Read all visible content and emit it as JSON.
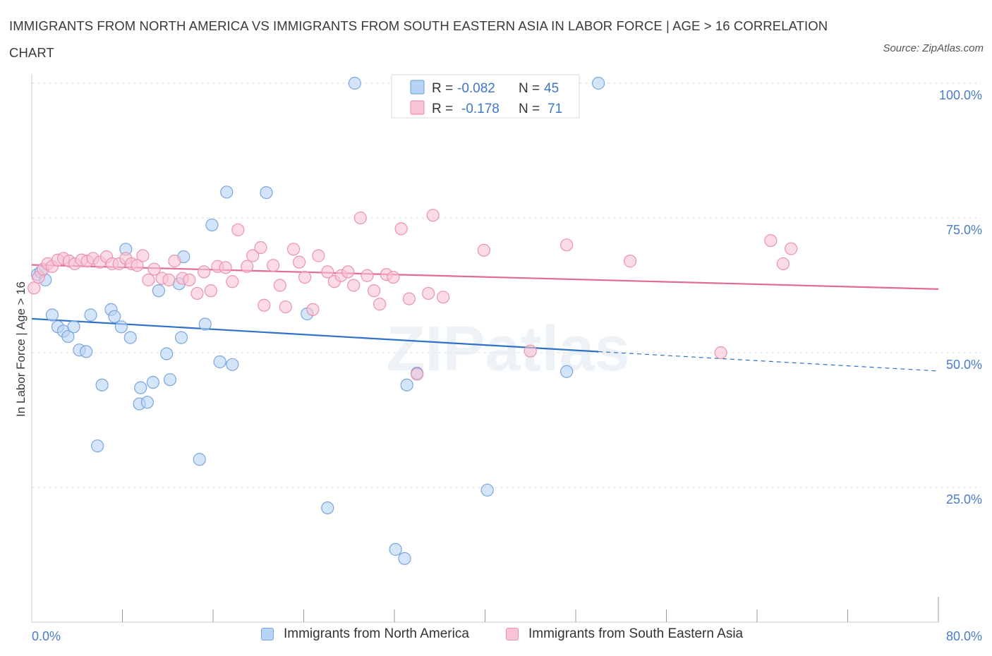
{
  "title": "IMMIGRANTS FROM NORTH AMERICA VS IMMIGRANTS FROM SOUTH EASTERN ASIA IN LABOR FORCE | AGE > 16 CORRELATION CHART",
  "source": "Source: ZipAtlas.com",
  "watermark": "ZIPatlas",
  "legend": {
    "r_label": "R =",
    "n_label": "N =",
    "rows": [
      {
        "r": "-0.082",
        "n": "45"
      },
      {
        "r": "-0.178",
        "n": "71"
      }
    ]
  },
  "colors": {
    "blue_fill": "#b7d3f5",
    "blue_stroke": "#7aa6de",
    "blue_line": "#2e72c9",
    "pink_fill": "#f8c3d3",
    "pink_stroke": "#ea93b0",
    "pink_line": "#e26a93",
    "tick_text": "#4a7cc9"
  },
  "chart_data": {
    "type": "scatter",
    "xlabel": "",
    "ylabel": "In Labor Force | Age > 16",
    "xlim": [
      0,
      80
    ],
    "ylim": [
      0,
      100
    ],
    "x_tick_labels": [
      "0.0%",
      "80.0%"
    ],
    "y_ticks": [
      25,
      50,
      75,
      100
    ],
    "y_tick_labels": [
      "25.0%",
      "50.0%",
      "75.0%",
      "100.0%"
    ],
    "grid": true,
    "legend_position": "top-center",
    "series": [
      {
        "name": "Immigrants from North America",
        "color": "#b7d3f5",
        "trend": {
          "x": [
            0,
            50
          ],
          "y": [
            56.3,
            50.2
          ],
          "dashed_to": [
            80,
            46.6
          ]
        },
        "points": [
          [
            0.5,
            64.5
          ],
          [
            0.8,
            65.0
          ],
          [
            1.2,
            63.5
          ],
          [
            1.8,
            57.0
          ],
          [
            2.3,
            54.8
          ],
          [
            2.8,
            54.0
          ],
          [
            3.2,
            53.0
          ],
          [
            3.7,
            54.8
          ],
          [
            4.2,
            50.5
          ],
          [
            4.8,
            50.2
          ],
          [
            5.2,
            57.0
          ],
          [
            6.2,
            44.0
          ],
          [
            5.8,
            32.7
          ],
          [
            7.0,
            58.0
          ],
          [
            7.3,
            56.7
          ],
          [
            7.9,
            54.8
          ],
          [
            8.7,
            52.8
          ],
          [
            8.3,
            69.2
          ],
          [
            9.6,
            43.5
          ],
          [
            9.5,
            40.5
          ],
          [
            10.2,
            40.8
          ],
          [
            10.7,
            44.5
          ],
          [
            11.2,
            61.5
          ],
          [
            11.9,
            49.8
          ],
          [
            12.2,
            45.0
          ],
          [
            13.2,
            52.8
          ],
          [
            13.0,
            62.8
          ],
          [
            13.4,
            67.8
          ],
          [
            14.8,
            30.2
          ],
          [
            15.3,
            55.3
          ],
          [
            15.9,
            73.7
          ],
          [
            16.6,
            48.3
          ],
          [
            17.7,
            47.8
          ],
          [
            17.2,
            79.8
          ],
          [
            20.7,
            79.7
          ],
          [
            24.3,
            57.2
          ],
          [
            26.1,
            21.2
          ],
          [
            28.5,
            100.0
          ],
          [
            32.1,
            13.5
          ],
          [
            32.9,
            11.8
          ],
          [
            33.1,
            44.0
          ],
          [
            34.0,
            46.2
          ],
          [
            40.2,
            24.5
          ],
          [
            47.2,
            46.5
          ],
          [
            50.0,
            100.0
          ]
        ]
      },
      {
        "name": "Immigrants from South Eastern Asia",
        "color": "#f8c3d3",
        "trend": {
          "x": [
            0,
            80
          ],
          "y": [
            66.3,
            61.8
          ]
        },
        "points": [
          [
            0.2,
            62.0
          ],
          [
            0.6,
            64.0
          ],
          [
            1.0,
            65.5
          ],
          [
            1.4,
            66.5
          ],
          [
            1.8,
            66.0
          ],
          [
            2.3,
            67.2
          ],
          [
            2.8,
            67.5
          ],
          [
            3.3,
            67.0
          ],
          [
            3.8,
            66.5
          ],
          [
            4.4,
            67.2
          ],
          [
            4.9,
            67.0
          ],
          [
            5.4,
            67.5
          ],
          [
            6.0,
            66.8
          ],
          [
            6.6,
            67.8
          ],
          [
            7.1,
            66.5
          ],
          [
            7.7,
            66.5
          ],
          [
            8.3,
            67.5
          ],
          [
            8.8,
            66.5
          ],
          [
            9.3,
            66.2
          ],
          [
            9.8,
            68.0
          ],
          [
            10.3,
            63.5
          ],
          [
            10.8,
            65.5
          ],
          [
            11.5,
            63.8
          ],
          [
            12.1,
            63.5
          ],
          [
            12.6,
            67.0
          ],
          [
            13.3,
            63.8
          ],
          [
            13.9,
            63.5
          ],
          [
            14.6,
            61.0
          ],
          [
            15.2,
            65.0
          ],
          [
            15.8,
            61.5
          ],
          [
            16.4,
            66.0
          ],
          [
            17.1,
            65.8
          ],
          [
            17.7,
            63.2
          ],
          [
            18.2,
            72.8
          ],
          [
            19.0,
            66.0
          ],
          [
            19.5,
            68.0
          ],
          [
            20.2,
            69.5
          ],
          [
            20.5,
            58.8
          ],
          [
            21.3,
            66.2
          ],
          [
            21.9,
            62.5
          ],
          [
            22.4,
            58.5
          ],
          [
            23.1,
            69.2
          ],
          [
            23.6,
            66.8
          ],
          [
            24.1,
            64.0
          ],
          [
            24.8,
            58.0
          ],
          [
            25.3,
            68.0
          ],
          [
            26.1,
            65.0
          ],
          [
            26.7,
            63.2
          ],
          [
            27.3,
            64.3
          ],
          [
            27.9,
            65.0
          ],
          [
            28.4,
            62.5
          ],
          [
            29.0,
            75.0
          ],
          [
            29.6,
            64.3
          ],
          [
            30.2,
            61.5
          ],
          [
            30.7,
            59.0
          ],
          [
            31.3,
            64.5
          ],
          [
            31.9,
            64.0
          ],
          [
            32.6,
            73.0
          ],
          [
            33.3,
            60.0
          ],
          [
            34.0,
            46.0
          ],
          [
            35.0,
            61.0
          ],
          [
            35.4,
            75.5
          ],
          [
            36.3,
            60.3
          ],
          [
            39.9,
            69.0
          ],
          [
            44.0,
            50.3
          ],
          [
            47.2,
            70.0
          ],
          [
            52.8,
            67.0
          ],
          [
            60.8,
            50.0
          ],
          [
            65.2,
            70.8
          ],
          [
            66.3,
            66.5
          ],
          [
            67.0,
            69.3
          ]
        ]
      }
    ]
  },
  "bottom_legend": [
    {
      "label": "Immigrants from North America"
    },
    {
      "label": "Immigrants from South Eastern Asia"
    }
  ]
}
